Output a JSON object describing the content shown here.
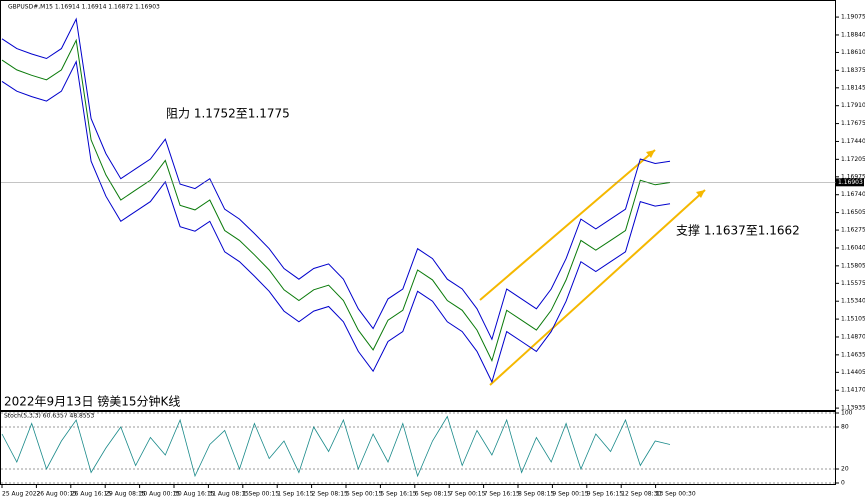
{
  "chart_data": [
    {
      "type": "line",
      "header": "GBPUSD#,M15 1.16914 1.16914 1.16872 1.16903",
      "annotations": [
        "阻力 1.1752至1.1775",
        "支撑 1.1637至1.1662",
        "2022年9月13日 镑美15分钟K线"
      ],
      "xticks": [
        "25 Aug 2022",
        "26 Aug 00:15",
        "26 Aug 16:15",
        "29 Aug 08:15",
        "30 Aug 00:15",
        "30 Aug 16:15",
        "31 Aug 08:15",
        "1 Sep 00:15",
        "1 Sep 16:15",
        "2 Sep 08:15",
        "5 Sep 00:15",
        "5 Sep 16:15",
        "6 Sep 08:15",
        "7 Sep 00:15",
        "7 Sep 16:15",
        "8 Sep 08:15",
        "9 Sep 00:15",
        "9 Sep 16:15",
        "12 Sep 08:30",
        "13 Sep 00:30"
      ],
      "ylim": [
        1.1391,
        1.1926
      ],
      "yticks": [
        {
          "value": 1.19075,
          "label": "1.19075"
        },
        {
          "value": 1.1884,
          "label": "1.18840"
        },
        {
          "value": 1.1861,
          "label": "1.18610"
        },
        {
          "value": 1.18375,
          "label": "1.18375"
        },
        {
          "value": 1.18145,
          "label": "1.18145"
        },
        {
          "value": 1.1791,
          "label": "1.17910"
        },
        {
          "value": 1.17675,
          "label": "1.17675"
        },
        {
          "value": 1.1744,
          "label": "1.17440"
        },
        {
          "value": 1.17205,
          "label": "1.17205"
        },
        {
          "value": 1.16975,
          "label": "1.16975"
        },
        {
          "value": 1.1674,
          "label": "1.16740"
        },
        {
          "value": 1.16505,
          "label": "1.16505"
        },
        {
          "value": 1.16275,
          "label": "1.16275"
        },
        {
          "value": 1.1604,
          "label": "1.16040"
        },
        {
          "value": 1.15805,
          "label": "1.15805"
        },
        {
          "value": 1.15575,
          "label": "1.15575"
        },
        {
          "value": 1.1534,
          "label": "1.15340"
        },
        {
          "value": 1.15105,
          "label": "1.15105"
        },
        {
          "value": 1.1487,
          "label": "1.14870"
        },
        {
          "value": 1.14635,
          "label": "1.14635"
        },
        {
          "value": 1.14405,
          "label": "1.14405"
        },
        {
          "value": 1.1417,
          "label": "1.14170"
        },
        {
          "value": 1.13935,
          "label": "1.13935"
        }
      ],
      "current_price": {
        "value": 1.16903,
        "label": "1.16903"
      },
      "series": [
        {
          "color": "#0000cc",
          "values": [
            1.1879,
            1.1866,
            1.1859,
            1.1853,
            1.1866,
            1.1905,
            1.1774,
            1.1728,
            1.1695,
            1.1708,
            1.1721,
            1.1747,
            1.1688,
            1.1682,
            1.1695,
            1.1655,
            1.1642,
            1.1623,
            1.1603,
            1.1577,
            1.1563,
            1.1577,
            1.1583,
            1.1563,
            1.1524,
            1.1498,
            1.1537,
            1.155,
            1.1603,
            1.159,
            1.1563,
            1.155,
            1.1524,
            1.1484,
            1.155,
            1.1537,
            1.1524,
            1.155,
            1.159,
            1.1642,
            1.1629,
            1.1642,
            1.1655,
            1.1721,
            1.1715,
            1.1718
          ]
        },
        {
          "color": "#0a7a0a",
          "values": [
            1.1851,
            1.1838,
            1.1831,
            1.1825,
            1.1838,
            1.1877,
            1.1746,
            1.17,
            1.1667,
            1.168,
            1.1693,
            1.1719,
            1.166,
            1.1654,
            1.1667,
            1.1627,
            1.1614,
            1.1595,
            1.1575,
            1.1549,
            1.1535,
            1.1549,
            1.1555,
            1.1535,
            1.1496,
            1.147,
            1.1509,
            1.1522,
            1.1575,
            1.1562,
            1.1535,
            1.1522,
            1.1496,
            1.1456,
            1.1522,
            1.1509,
            1.1496,
            1.1522,
            1.1562,
            1.1614,
            1.1601,
            1.1614,
            1.1627,
            1.1693,
            1.1687,
            1.169
          ]
        },
        {
          "color": "#0000cc",
          "values": [
            1.1823,
            1.181,
            1.1803,
            1.1797,
            1.181,
            1.1849,
            1.1718,
            1.1672,
            1.1639,
            1.1652,
            1.1665,
            1.1691,
            1.1632,
            1.1626,
            1.1639,
            1.1599,
            1.1586,
            1.1567,
            1.1547,
            1.1521,
            1.1507,
            1.1521,
            1.1527,
            1.1507,
            1.1468,
            1.1442,
            1.1481,
            1.1494,
            1.1547,
            1.1534,
            1.1507,
            1.1494,
            1.1468,
            1.1428,
            1.1494,
            1.1481,
            1.1468,
            1.1494,
            1.1534,
            1.1586,
            1.1573,
            1.1586,
            1.1599,
            1.1665,
            1.1659,
            1.1662
          ]
        }
      ]
    },
    {
      "type": "line",
      "title": "Stoch(5,3,3) 60.6357 48.8553",
      "ylim": [
        0,
        100
      ],
      "yticks": [
        100,
        80,
        20,
        0
      ],
      "series": [
        {
          "color": "#1a8a8a",
          "values": [
            70,
            30,
            85,
            20,
            60,
            90,
            15,
            50,
            80,
            25,
            65,
            40,
            90,
            10,
            55,
            75,
            20,
            85,
            35,
            60,
            15,
            80,
            45,
            90,
            20,
            70,
            30,
            85,
            10,
            60,
            95,
            25,
            75,
            40,
            90,
            15,
            65,
            30,
            85,
            20,
            70,
            45,
            90,
            25,
            60,
            55
          ]
        }
      ]
    }
  ]
}
